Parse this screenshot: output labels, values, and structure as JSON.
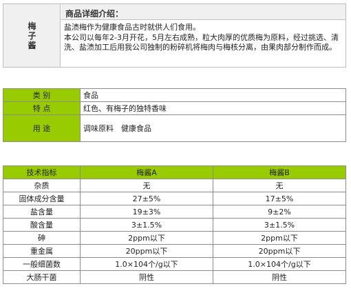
{
  "intro": {
    "product_name_chars": [
      "梅",
      "子",
      "酱"
    ],
    "section_title": "商品详细介绍：",
    "paragraphs": [
      "盐渍梅作为健康食品古时就供人们食用。",
      "本公司以每年2-3月开花，5月左右成熟，粒大肉厚的优质梅为原料，经过挑选、清洗、盐渍加工后用我公司独制的粉碎机将梅肉与梅核分离，由果肉部分制作而成。"
    ]
  },
  "category_table": {
    "rows": [
      {
        "label": "类 别",
        "value": "食品"
      },
      {
        "label": "特 点",
        "value": "红色、有梅子的独特香味"
      },
      {
        "label": "用 途",
        "value": "调味原料　健康食品"
      }
    ]
  },
  "spec_table": {
    "headers": [
      "技术指标",
      "梅酱A",
      "梅酱B"
    ],
    "rows": [
      [
        "杂质",
        "无",
        "无"
      ],
      [
        "固体成分含量",
        "27±5%",
        "17±5%"
      ],
      [
        "盐含量",
        "19±3%",
        "9±2%"
      ],
      [
        "酸含量",
        "3±1.5%",
        "3±1.5%"
      ],
      [
        "砷",
        "2ppm以下",
        "2ppm以下"
      ],
      [
        "重金属",
        "20ppm以下",
        "20ppm以下"
      ],
      [
        "一般细菌数",
        "1.0×104个/g以下",
        "1.0×104个/g以下"
      ],
      [
        "大肠干菌",
        "阴性",
        "阴性"
      ]
    ]
  },
  "colors": {
    "accent_green": "#99cc00",
    "header_gray": "#f0f0f0",
    "border": "#8c8c8c"
  }
}
